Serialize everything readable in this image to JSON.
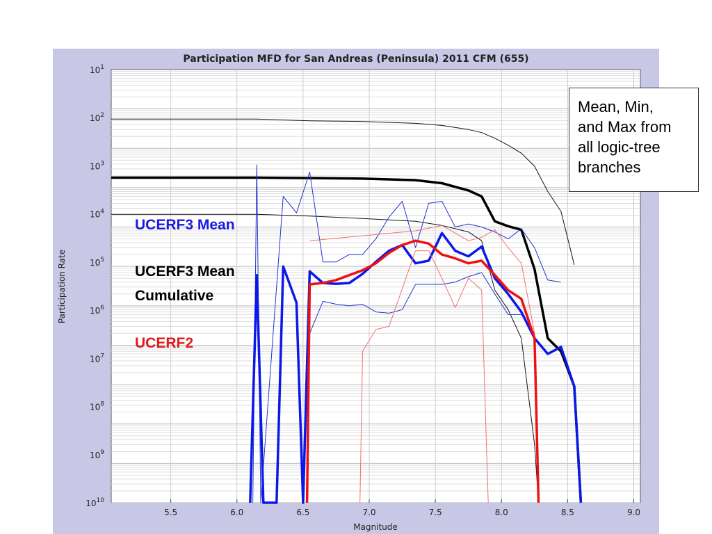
{
  "chart_data": {
    "type": "line",
    "title": "Participation MFD for San Andreas (Peninsula) 2011 CFM (655)",
    "xlabel": "Magnitude",
    "ylabel": "Participation Rate",
    "xlim": [
      5.05,
      9.05
    ],
    "ylim": [
      1e-10,
      10
    ],
    "yscale": "log",
    "x_ticks": [
      "5.5",
      "6.0",
      "6.5",
      "7.0",
      "7.5",
      "8.0",
      "8.5",
      "9.0"
    ],
    "y_ticks": [
      {
        "base": "10",
        "exp": "1"
      },
      {
        "base": "10",
        "exp": "2"
      },
      {
        "base": "10",
        "exp": "3"
      },
      {
        "base": "10",
        "exp": "4"
      },
      {
        "base": "10",
        "exp": "5"
      },
      {
        "base": "10",
        "exp": "6"
      },
      {
        "base": "10",
        "exp": "7"
      },
      {
        "base": "10",
        "exp": "8"
      },
      {
        "base": "10",
        "exp": "9"
      },
      {
        "base": "10",
        "exp": "10"
      }
    ],
    "grid": true,
    "series": [
      {
        "name": "UCERF3 Mean Cumulative (max)",
        "color": "#111111",
        "width": 1,
        "x": [
          5.05,
          6.15,
          6.55,
          6.95,
          7.35,
          7.55,
          7.75,
          7.85,
          7.95,
          8.05,
          8.15,
          8.25,
          8.35,
          8.45,
          8.55
        ],
        "y": [
          0.55,
          0.55,
          0.5,
          0.48,
          0.43,
          0.38,
          0.3,
          0.25,
          0.18,
          0.12,
          0.075,
          0.035,
          0.008,
          0.0025,
          0.00011
        ]
      },
      {
        "name": "UCERF3 Mean Cumulative (min)",
        "color": "#111111",
        "width": 1,
        "x": [
          5.05,
          6.15,
          6.55,
          6.95,
          7.35,
          7.55,
          7.75,
          7.85,
          7.95,
          8.05,
          8.15,
          8.25,
          8.28
        ],
        "y": [
          0.0021,
          0.0021,
          0.0019,
          0.00165,
          0.0014,
          0.0011,
          0.00075,
          0.00045,
          2.5e-05,
          8e-06,
          1.5e-06,
          3e-09,
          1e-10
        ]
      },
      {
        "name": "UCERF3 Mean Cumulative",
        "color": "#000000",
        "width": 3.5,
        "x": [
          5.05,
          6.15,
          6.55,
          6.95,
          7.35,
          7.55,
          7.75,
          7.85,
          7.95,
          8.05,
          8.15,
          8.25,
          8.35,
          8.45,
          8.55,
          8.6
        ],
        "y": [
          0.018,
          0.018,
          0.0175,
          0.017,
          0.0155,
          0.013,
          0.0085,
          0.006,
          0.0014,
          0.00105,
          0.00085,
          8.5e-05,
          1.5e-06,
          7e-07,
          9e-08,
          1e-10
        ]
      },
      {
        "name": "UCERF3 Mean (max)",
        "color": "#2233cc",
        "width": 1,
        "x": [
          6.12,
          6.15,
          6.18,
          6.35,
          6.45,
          6.55,
          6.65,
          6.75,
          6.85,
          6.95,
          7.05,
          7.15,
          7.25,
          7.35,
          7.45,
          7.55,
          7.65,
          7.75,
          7.85,
          7.95,
          8.05,
          8.15,
          8.25,
          8.35,
          8.45
        ],
        "y": [
          1e-10,
          0.038,
          1e-10,
          0.006,
          0.0023,
          0.025,
          0.00013,
          0.00013,
          0.0002,
          0.0002,
          0.0005,
          0.0018,
          0.0045,
          0.0003,
          0.004,
          0.0045,
          0.001,
          0.0012,
          0.001,
          0.00075,
          0.0005,
          0.0009,
          0.0003,
          4.5e-05,
          4e-05
        ]
      },
      {
        "name": "UCERF3 Mean (min)",
        "color": "#2233cc",
        "width": 1,
        "x": [
          6.55,
          6.65,
          6.75,
          6.85,
          6.95,
          7.05,
          7.15,
          7.25,
          7.35,
          7.45,
          7.55,
          7.65,
          7.75,
          7.85,
          7.95,
          8.05,
          8.15,
          8.25
        ],
        "y": [
          2e-06,
          1.3e-05,
          1.1e-05,
          1e-05,
          1.1e-05,
          7e-06,
          6.5e-06,
          8e-06,
          3.5e-05,
          3.5e-05,
          3.5e-05,
          4e-05,
          5.5e-05,
          7e-05,
          2e-05,
          6e-06,
          6e-06,
          2e-06
        ]
      },
      {
        "name": "UCERF3 Mean",
        "color": "#0b18e8",
        "width": 3.5,
        "x": [
          6.1,
          6.15,
          6.2,
          6.3,
          6.35,
          6.45,
          6.5,
          6.55,
          6.65,
          6.75,
          6.85,
          6.95,
          7.05,
          7.15,
          7.25,
          7.35,
          7.45,
          7.55,
          7.65,
          7.75,
          7.85,
          7.95,
          8.05,
          8.15,
          8.25,
          8.35,
          8.45,
          8.55,
          8.6
        ],
        "y": [
          1e-10,
          6e-05,
          1e-10,
          1e-10,
          0.0001,
          1.2e-05,
          1e-10,
          7.5e-05,
          3.8e-05,
          3.6e-05,
          3.8e-05,
          6.5e-05,
          0.00013,
          0.00025,
          0.00035,
          0.00012,
          0.00014,
          0.0007,
          0.00025,
          0.00018,
          0.00032,
          5e-05,
          2e-05,
          7e-06,
          1.5e-06,
          6e-07,
          9e-07,
          9e-08,
          1e-10
        ]
      },
      {
        "name": "UCERF2 (max)",
        "color": "#f07070",
        "width": 1,
        "x": [
          6.55,
          6.95,
          7.35,
          7.55,
          7.75,
          7.85,
          7.95,
          8.05,
          8.15,
          8.25,
          8.28
        ],
        "y": [
          0.00045,
          0.0006,
          0.0008,
          0.0011,
          0.00045,
          0.00055,
          0.00085,
          0.0003,
          0.00012,
          2e-06,
          1e-10
        ]
      },
      {
        "name": "UCERF2 (min)",
        "color": "#f07070",
        "width": 1,
        "x": [
          6.93,
          6.95,
          7.05,
          7.15,
          7.35,
          7.45,
          7.55,
          7.65,
          7.75,
          7.85,
          7.9
        ],
        "y": [
          1e-10,
          7e-07,
          2.5e-06,
          3e-06,
          0.00025,
          0.00025,
          5e-05,
          9e-06,
          5e-05,
          2.5e-05,
          1e-10
        ]
      },
      {
        "name": "UCERF2",
        "color": "#ee1111",
        "width": 3.5,
        "x": [
          6.53,
          6.55,
          6.65,
          6.75,
          6.85,
          6.95,
          7.05,
          7.15,
          7.25,
          7.35,
          7.45,
          7.55,
          7.65,
          7.75,
          7.85,
          7.95,
          8.05,
          8.15,
          8.25,
          8.28
        ],
        "y": [
          1e-10,
          3.5e-05,
          3.8e-05,
          4.5e-05,
          6e-05,
          8e-05,
          0.00012,
          0.00022,
          0.00035,
          0.00045,
          0.00038,
          0.0002,
          0.00016,
          0.00012,
          0.00014,
          6e-05,
          2.5e-05,
          1.5e-05,
          1.5e-06,
          1e-10
        ]
      }
    ]
  },
  "labels": {
    "ucerf3_mean": "UCERF3 Mean",
    "ucerf3_cum_line1": "UCERF3 Mean",
    "ucerf3_cum_line2": "Cumulative",
    "ucerf2": "UCERF2",
    "callout_lines": [
      "Mean, Min,",
      "and Max from",
      "all logic-tree",
      "branches"
    ]
  },
  "colors": {
    "frame_bg": "#c8c8e6",
    "ucerf3_label": "#1a1ae0",
    "ucerf3_cum_label": "#000000",
    "ucerf2_label": "#e01a1a"
  }
}
